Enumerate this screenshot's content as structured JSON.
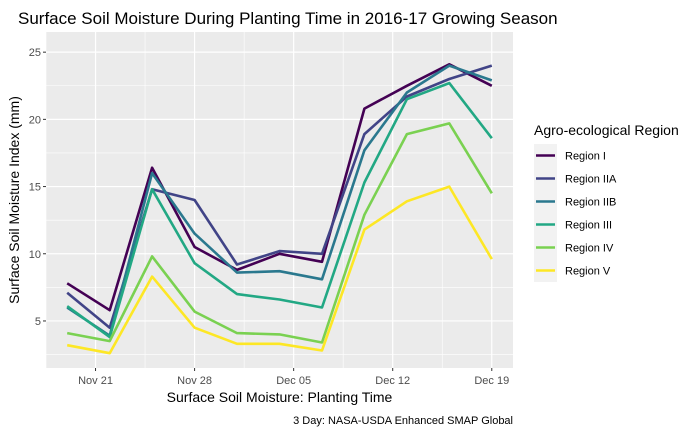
{
  "chart_data": {
    "type": "line",
    "title": "Surface Soil Moisture During Planting Time in 2016-17 Growing Season",
    "xlabel": "Surface Soil Moisture: Planting Time",
    "ylabel": "Surface Soil Moisture Index (mm)",
    "caption": "3 Day: NASA-USDA Enhanced SMAP Global",
    "x": [
      "2016-11-19",
      "2016-11-22",
      "2016-11-25",
      "2016-11-28",
      "2016-12-01",
      "2016-12-04",
      "2016-12-07",
      "2016-12-10",
      "2016-12-13",
      "2016-12-16",
      "2016-12-19"
    ],
    "x_ticks": [
      {
        "date": "2016-11-21",
        "label": "Nov 21"
      },
      {
        "date": "2016-11-28",
        "label": "Nov 28"
      },
      {
        "date": "2016-12-05",
        "label": "Dec 05"
      },
      {
        "date": "2016-12-12",
        "label": "Dec 12"
      },
      {
        "date": "2016-12-19",
        "label": "Dec 19"
      }
    ],
    "y_ticks": [
      5,
      10,
      15,
      20,
      25
    ],
    "ylim": [
      1.5,
      26.5
    ],
    "grid": true,
    "legend": {
      "title": "Agro-ecological Region",
      "position": "right"
    },
    "series": [
      {
        "name": "Region I",
        "color": "#440154",
        "values": [
          7.8,
          5.8,
          16.4,
          10.5,
          8.8,
          10.0,
          9.4,
          20.8,
          22.5,
          24.1,
          22.5
        ]
      },
      {
        "name": "Region IIA",
        "color": "#414487",
        "values": [
          7.1,
          4.5,
          14.8,
          14.0,
          9.2,
          10.2,
          10.0,
          18.9,
          21.7,
          23.0,
          24.0
        ]
      },
      {
        "name": "Region IIB",
        "color": "#2A788E",
        "values": [
          6.0,
          3.9,
          16.0,
          11.5,
          8.6,
          8.7,
          8.1,
          17.7,
          22.0,
          24.0,
          22.9
        ]
      },
      {
        "name": "Region III",
        "color": "#22A884",
        "values": [
          6.1,
          3.8,
          14.8,
          9.3,
          7.0,
          6.6,
          6.0,
          15.3,
          21.5,
          22.7,
          18.6
        ]
      },
      {
        "name": "Region IV",
        "color": "#7AD151",
        "values": [
          4.1,
          3.5,
          9.8,
          5.7,
          4.1,
          4.0,
          3.4,
          12.9,
          18.9,
          19.7,
          14.5
        ]
      },
      {
        "name": "Region V",
        "color": "#FDE725",
        "values": [
          3.2,
          2.6,
          8.3,
          4.5,
          3.3,
          3.3,
          2.8,
          11.8,
          13.9,
          15.0,
          9.6
        ]
      }
    ]
  }
}
